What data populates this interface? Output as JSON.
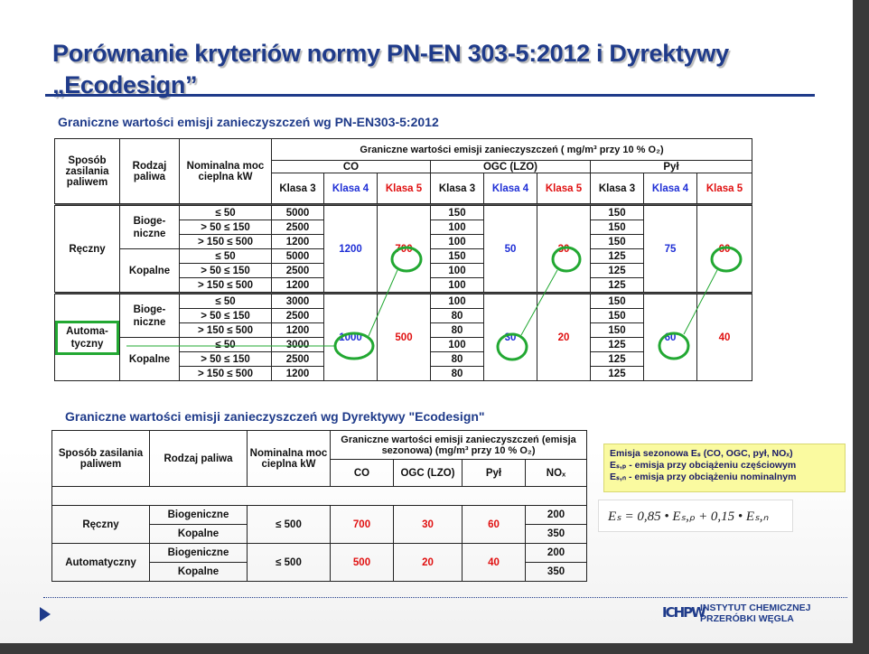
{
  "slide": {
    "title_line1": "Porównanie kryteriów normy PN-EN 303-5:2012 i Dyrektywy",
    "title_line2": "„Ecodesign”"
  },
  "table1": {
    "caption": "Graniczne wartości emisji zanieczyszczeń wg PN-EN303-5:2012",
    "h_supply": "Sposób zasilania paliwem",
    "h_fuel": "Rodzaj paliwa",
    "h_power": "Nominalna moc cieplna kW",
    "h_limits": "Graniczne wartości emisji zanieczyszczeń ( mg/m³ przy 10 % O₂)",
    "g_co": "CO",
    "g_ogc": "OGC (LZO)",
    "g_dust": "Pył",
    "k3": "Klasa 3",
    "k4": "Klasa 4",
    "k5": "Klasa 5",
    "manual": "Ręczny",
    "auto": "Automa-tyczny",
    "bio": "Bioge-niczne",
    "fossil": "Kopalne",
    "p1": "≤ 50",
    "p2": "> 50 ≤ 150",
    "p3": "> 150 ≤ 500",
    "rows": [
      {
        "co3": "5000",
        "ogc3": "150",
        "dust3": "150"
      },
      {
        "co3": "2500",
        "ogc3": "100",
        "dust3": "150"
      },
      {
        "co3": "1200",
        "ogc3": "100",
        "dust3": "150"
      },
      {
        "co3": "5000",
        "ogc3": "150",
        "dust3": "125"
      },
      {
        "co3": "2500",
        "ogc3": "100",
        "dust3": "125"
      },
      {
        "co3": "1200",
        "ogc3": "100",
        "dust3": "125"
      },
      {
        "co3": "3000",
        "ogc3": "100",
        "dust3": "150"
      },
      {
        "co3": "2500",
        "ogc3": "80",
        "dust3": "150"
      },
      {
        "co3": "1200",
        "ogc3": "80",
        "dust3": "150"
      },
      {
        "co3": "3000",
        "ogc3": "100",
        "dust3": "125"
      },
      {
        "co3": "2500",
        "ogc3": "80",
        "dust3": "125"
      },
      {
        "co3": "1200",
        "ogc3": "80",
        "dust3": "125"
      }
    ],
    "manual_k4": {
      "co": "1200",
      "ogc": "50",
      "dust": "75"
    },
    "manual_k5": {
      "co": "700",
      "ogc": "30",
      "dust": "60"
    },
    "auto_k4": {
      "co": "1000",
      "ogc": "30",
      "dust": "60"
    },
    "auto_k5": {
      "co": "500",
      "ogc": "20",
      "dust": "40"
    }
  },
  "table2": {
    "caption": "Graniczne wartości emisji zanieczyszczeń wg Dyrektywy \"Ecodesign\"",
    "h_supply": "Sposób zasilania paliwem",
    "h_fuel": "Rodzaj paliwa",
    "h_power": "Nominalna moc cieplna kW",
    "h_limits": "Graniczne wartości emisji zanieczyszczeń (emisja sezonowa) (mg/m³ przy 10 % O₂)",
    "c_co": "CO",
    "c_ogc": "OGC (LZO)",
    "c_dust": "Pył",
    "c_nox": "NOₓ",
    "manual": "Ręczny",
    "auto": "Automatyczny",
    "bio": "Biogeniczne",
    "fossil": "Kopalne",
    "power": "≤ 500",
    "manual_vals": {
      "co": "700",
      "ogc": "30",
      "dust": "60",
      "nox_bio": "200",
      "nox_fossil": "350"
    },
    "auto_vals": {
      "co": "500",
      "ogc": "20",
      "dust": "40",
      "nox_bio": "200",
      "nox_fossil": "350"
    }
  },
  "note": {
    "line1": "Emisja sezonowa Eₛ (CO, OGC, pył, NOₓ)",
    "line2": "Eₛ,ₚ - emisja przy obciążeniu częściowym",
    "line3": "Eₛ,ₙ - emisja przy obciążeniu nominalnym"
  },
  "formula": "Eₛ = 0,85 • Eₛ,ₚ + 0,15 • Eₛ,ₙ",
  "logo": {
    "mark": "ICHPW",
    "line1": "INSTYTUT CHEMICZNEJ",
    "line2": "PRZERÓBKI WĘGLA"
  },
  "colors": {
    "title": "#1f3b8a",
    "blue": "#1f2fd6",
    "red": "#e01010",
    "highlight": "#22a832",
    "note_bg": "#fafaa0"
  }
}
